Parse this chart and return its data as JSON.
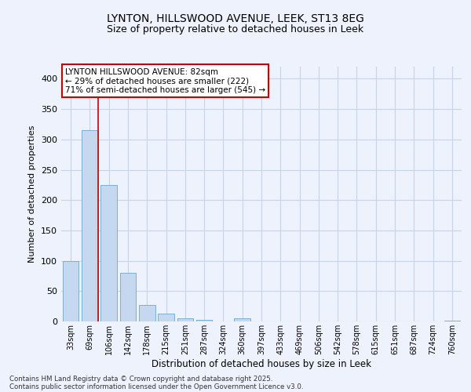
{
  "title_line1": "LYNTON, HILLSWOOD AVENUE, LEEK, ST13 8EG",
  "title_line2": "Size of property relative to detached houses in Leek",
  "xlabel": "Distribution of detached houses by size in Leek",
  "ylabel": "Number of detached properties",
  "categories": [
    "33sqm",
    "69sqm",
    "106sqm",
    "142sqm",
    "178sqm",
    "215sqm",
    "251sqm",
    "287sqm",
    "324sqm",
    "360sqm",
    "397sqm",
    "433sqm",
    "469sqm",
    "506sqm",
    "542sqm",
    "578sqm",
    "615sqm",
    "651sqm",
    "687sqm",
    "724sqm",
    "760sqm"
  ],
  "values": [
    100,
    315,
    225,
    80,
    27,
    13,
    5,
    2,
    0,
    5,
    0,
    0,
    0,
    0,
    0,
    0,
    0,
    0,
    0,
    0,
    1
  ],
  "bar_color": "#c5d8f0",
  "bar_edge_color": "#7bafd4",
  "property_line_x": 1.42,
  "annotation_line1": "LYNTON HILLSWOOD AVENUE: 82sqm",
  "annotation_line2": "← 29% of detached houses are smaller (222)",
  "annotation_line3": "71% of semi-detached houses are larger (545) →",
  "annotation_box_facecolor": "#ffffff",
  "annotation_box_edgecolor": "#cc0000",
  "vline_color": "#cc0000",
  "background_color": "#edf2fc",
  "plot_bg_color": "#edf2fc",
  "grid_color": "#c8d4ea",
  "footer_line1": "Contains HM Land Registry data © Crown copyright and database right 2025.",
  "footer_line2": "Contains public sector information licensed under the Open Government Licence v3.0.",
  "ylim": [
    0,
    420
  ],
  "yticks": [
    0,
    50,
    100,
    150,
    200,
    250,
    300,
    350,
    400
  ]
}
